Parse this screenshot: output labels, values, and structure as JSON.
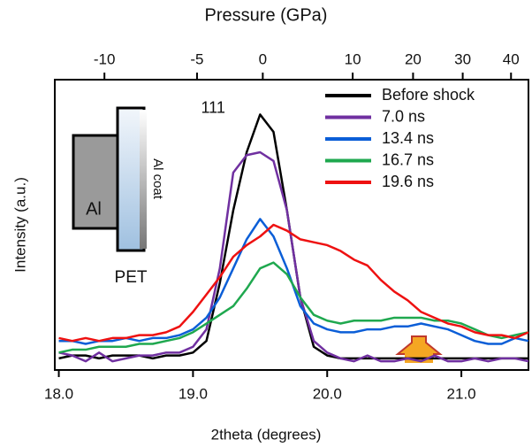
{
  "chart_data": {
    "type": "line",
    "x_label": "2theta (degrees)",
    "y_label": "Intensity (a.u.)",
    "x2_label": "Pressure (GPa)",
    "xlim": [
      17.97,
      21.5
    ],
    "ylim": [
      0,
      100
    ],
    "xticks": [
      {
        "value": 18,
        "label": "18.0"
      },
      {
        "value": 19,
        "label": "19.0"
      },
      {
        "value": 20,
        "label": "20.0"
      },
      {
        "value": 21,
        "label": "21.0"
      }
    ],
    "x2ticks": [
      -10,
      -5,
      0,
      10,
      20,
      30,
      40
    ],
    "x2tick_2theta": [
      18.34,
      19.03,
      19.52,
      20.19,
      20.64,
      21.01,
      21.37
    ],
    "x": [
      18.0,
      18.1,
      18.2,
      18.3,
      18.4,
      18.5,
      18.6,
      18.7,
      18.8,
      18.9,
      19.0,
      19.1,
      19.2,
      19.3,
      19.4,
      19.5,
      19.6,
      19.7,
      19.8,
      19.9,
      20.0,
      20.1,
      20.2,
      20.3,
      20.4,
      20.5,
      20.6,
      20.7,
      20.8,
      20.9,
      21.0,
      21.1,
      21.2,
      21.3,
      21.4,
      21.5
    ],
    "series": [
      {
        "name": "Before shock",
        "color": "#000000",
        "values": [
          4,
          5,
          5,
          4,
          5,
          5,
          5,
          4,
          5,
          5,
          6,
          10,
          30,
          55,
          75,
          88,
          82,
          55,
          25,
          8,
          5,
          4,
          4,
          4,
          4,
          4,
          4,
          4,
          4,
          4,
          4,
          4,
          4,
          4,
          4,
          4
        ]
      },
      {
        "name": "7.0 ns",
        "color": "#7030a0",
        "values": [
          6,
          5,
          3,
          6,
          3,
          4,
          5,
          5,
          6,
          6,
          8,
          14,
          35,
          68,
          74,
          75,
          72,
          55,
          25,
          10,
          6,
          4,
          3,
          5,
          3,
          3,
          4,
          3,
          5,
          3,
          3,
          4,
          3,
          4,
          4,
          3
        ]
      },
      {
        "name": "13.4 ns",
        "color": "#0b5ed7",
        "values": [
          10,
          10,
          9,
          10,
          10,
          11,
          10,
          11,
          11,
          12,
          14,
          18,
          25,
          35,
          45,
          52,
          46,
          35,
          22,
          16,
          14,
          13,
          13,
          14,
          14,
          15,
          15,
          16,
          15,
          14,
          12,
          10,
          9,
          9,
          11,
          10
        ]
      },
      {
        "name": "16.7 ns",
        "color": "#1fa84f",
        "values": [
          6,
          7,
          7,
          8,
          8,
          8,
          9,
          9,
          10,
          11,
          13,
          16,
          19,
          22,
          28,
          35,
          37,
          33,
          25,
          19,
          17,
          16,
          17,
          17,
          17,
          18,
          18,
          18,
          17,
          17,
          16,
          14,
          12,
          11,
          12,
          13
        ]
      },
      {
        "name": "19.6 ns",
        "color": "#ee1111",
        "values": [
          11,
          10,
          11,
          10,
          11,
          11,
          12,
          12,
          13,
          15,
          20,
          26,
          32,
          39,
          43,
          46,
          50,
          48,
          45,
          44,
          43,
          41,
          38,
          36,
          31,
          27,
          24,
          20,
          18,
          16,
          15,
          13,
          12,
          12,
          11,
          13
        ]
      }
    ],
    "annotation": {
      "text": "111",
      "x": 19.15,
      "y": 90
    },
    "inset": {
      "left_label": "Al",
      "coat_label": "Al coat",
      "substrate_label": "PET"
    },
    "legend": "upper right"
  }
}
